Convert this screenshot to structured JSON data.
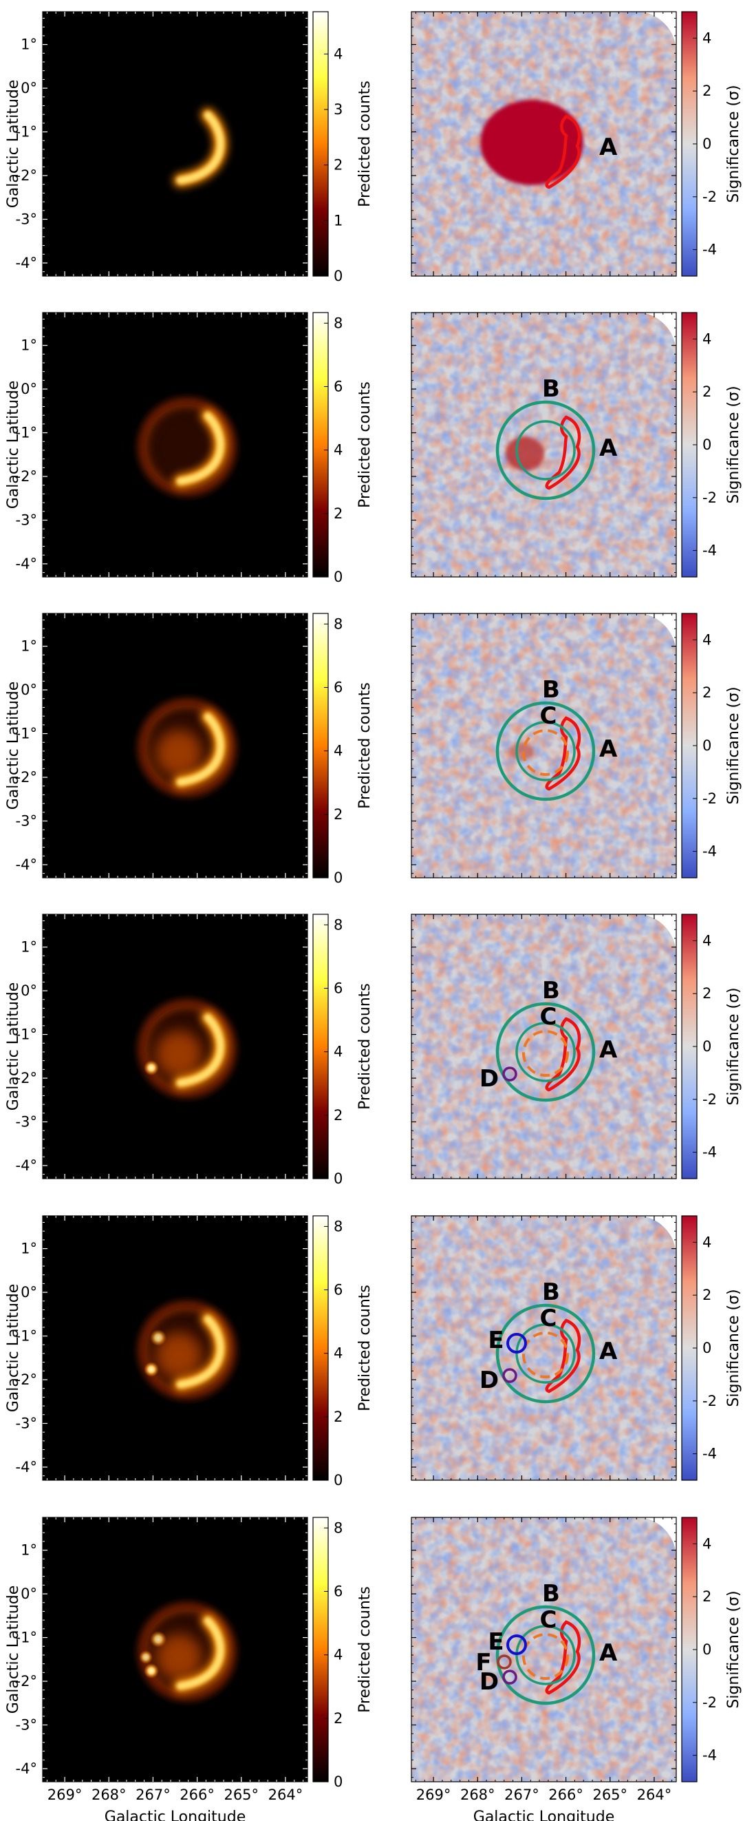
{
  "chart_data": {
    "type": "heatmap",
    "layout": "6 rows x 2 columns",
    "xlabel": "Galactic Longitude",
    "ylabel": "Galactic Latitude",
    "x_ticks": [
      "269°",
      "268°",
      "267°",
      "266°",
      "265°",
      "264°"
    ],
    "y_ticks": [
      "1°",
      "0°",
      "-1°",
      "-2°",
      "-3°",
      "-4°"
    ],
    "xlim": [
      269.5,
      263.5
    ],
    "ylim": [
      -4.3,
      1.75
    ],
    "left_panels": {
      "colorbar_label": "Predicted counts",
      "colormap": "afmhot",
      "colorbar_ticks_row1": [
        "0",
        "1",
        "2",
        "3",
        "4"
      ],
      "colorbar_ticks_other": [
        "0",
        "2",
        "4",
        "6",
        "8"
      ]
    },
    "right_panels": {
      "colorbar_label": "Significance (σ)",
      "colormap": "coolwarm",
      "colorbar_ticks": [
        "-4",
        "-2",
        "0",
        "2",
        "4"
      ],
      "clim": [
        -5,
        5
      ]
    },
    "rows": [
      {
        "row": 1,
        "components": [
          "A"
        ]
      },
      {
        "row": 2,
        "components": [
          "A",
          "B"
        ]
      },
      {
        "row": 3,
        "components": [
          "A",
          "B",
          "C"
        ]
      },
      {
        "row": 4,
        "components": [
          "A",
          "B",
          "C",
          "D"
        ]
      },
      {
        "row": 5,
        "components": [
          "A",
          "B",
          "C",
          "D",
          "E"
        ]
      },
      {
        "row": 6,
        "components": [
          "A",
          "B",
          "C",
          "D",
          "E",
          "F"
        ]
      }
    ],
    "component_colors": {
      "A": "#ee1111",
      "B": "#1d9b78",
      "C": "#ee7722",
      "D": "#6a1a82",
      "E": "#1111cc",
      "F": "#a03a2a"
    },
    "component_labels": {
      "A": "A",
      "B": "B",
      "C": "C",
      "D": "D",
      "E": "E",
      "F": "F"
    }
  }
}
